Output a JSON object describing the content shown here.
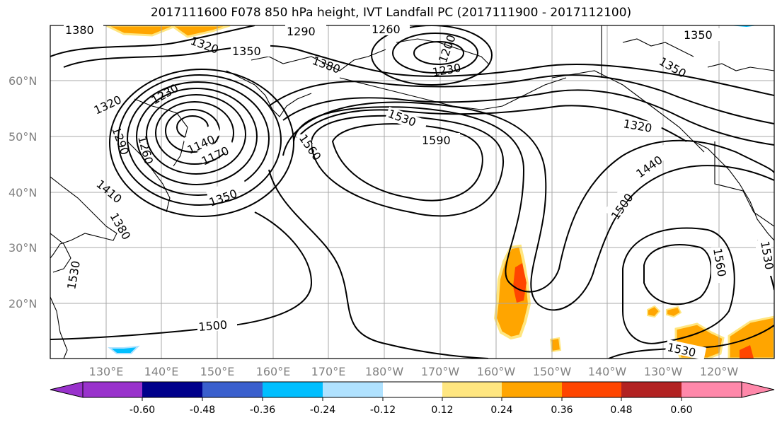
{
  "title": "2017111600 F078 850 hPa height, IVT Landfall PC (2017111900 - 2017112100)",
  "lat_labels": [
    "60°N",
    "50°N",
    "40°N",
    "30°N",
    "20°N"
  ],
  "lon_labels": [
    "130°E",
    "140°E",
    "150°E",
    "160°E",
    "170°E",
    "180°W",
    "170°W",
    "160°W",
    "150°W",
    "140°W",
    "130°W",
    "120°W"
  ],
  "colorbar": {
    "colors": [
      "#9932cc",
      "#00008b",
      "#3a5fcd",
      "#00bfff",
      "#b0e2ff",
      "#ffffff",
      "#ffe680",
      "#ffa500",
      "#ff4500",
      "#b22222",
      "#ff88aa"
    ],
    "tick_labels": [
      "-0.60",
      "-0.48",
      "-0.36",
      "-0.24",
      "-0.12",
      "0.12",
      "0.24",
      "0.36",
      "0.48",
      "0.60"
    ]
  },
  "contour_labels": [
    "1380",
    "1320",
    "1290",
    "1260",
    "1350",
    "1350",
    "1320",
    "1230",
    "1380",
    "1230",
    "1200",
    "1350",
    "1290",
    "1260",
    "1140",
    "1170",
    "1530",
    "1590",
    "1560",
    "1320",
    "1440",
    "1410",
    "1350",
    "1500",
    "1380",
    "1560",
    "1530",
    "1530",
    "1500",
    "1530"
  ]
}
